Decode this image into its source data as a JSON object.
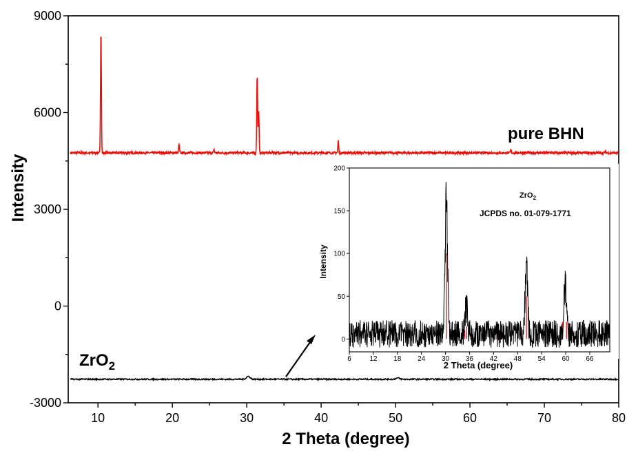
{
  "chart_data": [
    {
      "type": "line",
      "xlabel": "2 Theta (degree)",
      "ylabel": "Intensity",
      "xlim": [
        6,
        80
      ],
      "ylim": [
        -3000,
        9000
      ],
      "xticks": [
        10,
        20,
        30,
        40,
        50,
        60,
        70,
        80
      ],
      "yticks": [
        -3000,
        0,
        3000,
        6000,
        9000
      ],
      "colors": {
        "pure_bhn": "#e8120c",
        "zro2": "#000000"
      },
      "series": [
        {
          "name": "pure BHN",
          "baseline": 4750,
          "peaks": [
            {
              "x": 10.4,
              "y": 8600
            },
            {
              "x": 20.9,
              "y": 5020
            },
            {
              "x": 25.6,
              "y": 4860
            },
            {
              "x": 31.4,
              "y": 7200
            },
            {
              "x": 31.6,
              "y": 6100
            },
            {
              "x": 33.5,
              "y": 4790
            },
            {
              "x": 42.3,
              "y": 5130
            },
            {
              "x": 65.5,
              "y": 4850
            },
            {
              "x": 78.2,
              "y": 4800
            }
          ]
        },
        {
          "name": "ZrO",
          "name_subscript": "2",
          "baseline": -2270,
          "peaks": [
            {
              "x": 30.2,
              "y": -2180
            },
            {
              "x": 50.3,
              "y": -2230
            }
          ]
        }
      ]
    },
    {
      "type": "line",
      "inset": true,
      "title": "ZrO",
      "title_subscript": "2",
      "subtitle": "JCPDS no. 01-079-1771",
      "xlabel": "2 Theta (degree)",
      "ylabel": "Intensity",
      "xlim": [
        6,
        71
      ],
      "ylim": [
        -15,
        200
      ],
      "xticks": [
        6,
        12,
        18,
        24,
        30,
        36,
        42,
        48,
        54,
        60,
        66
      ],
      "yticks": [
        0,
        50,
        100,
        150,
        200
      ],
      "colors": {
        "trace": "#000000",
        "reference": "#d81a1a"
      },
      "series": [
        {
          "name": "",
          "noise_band": [
            -10,
            22
          ],
          "peaks": [
            {
              "x": 30.2,
              "y": 170
            },
            {
              "x": 35.2,
              "y": 33
            },
            {
              "x": 50.2,
              "y": 90
            },
            {
              "x": 59.9,
              "y": 62
            }
          ]
        }
      ],
      "reference_lines": [
        {
          "x": 30.2,
          "y": 100
        },
        {
          "x": 34.8,
          "y": 10
        },
        {
          "x": 35.3,
          "y": 15
        },
        {
          "x": 43.0,
          "y": 5
        },
        {
          "x": 50.2,
          "y": 50
        },
        {
          "x": 50.8,
          "y": 25
        },
        {
          "x": 53.5,
          "y": 5
        },
        {
          "x": 59.2,
          "y": 20
        },
        {
          "x": 60.2,
          "y": 20
        },
        {
          "x": 62.7,
          "y": 5
        },
        {
          "x": 70.0,
          "y": 10
        }
      ]
    }
  ]
}
